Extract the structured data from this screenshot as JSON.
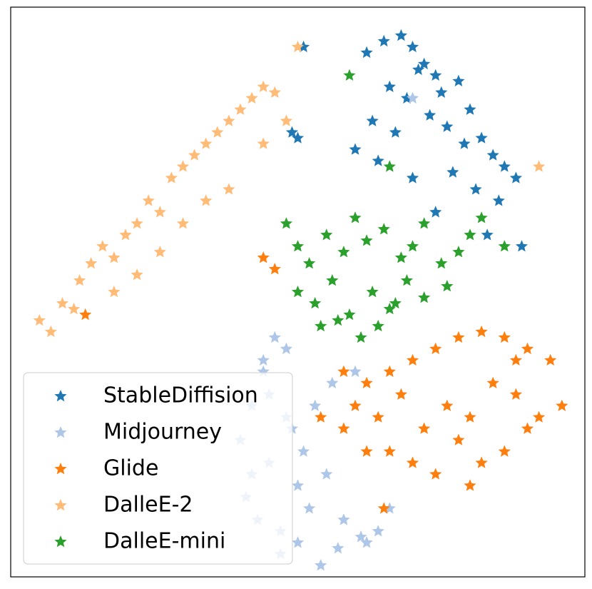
{
  "chart_data": {
    "type": "scatter",
    "xlim": [
      0,
      100
    ],
    "ylim": [
      0,
      100
    ],
    "legend": "lower left",
    "series": [
      {
        "name": "StableDiffision",
        "color": "#1f77b4",
        "x": [
          62,
          65,
          68,
          70,
          72,
          74,
          66,
          69,
          71,
          75,
          78,
          80,
          63,
          67,
          73,
          76,
          79,
          82,
          84,
          86,
          64,
          70,
          77,
          81,
          85,
          88,
          60,
          74,
          83,
          89,
          50,
          49,
          51
        ],
        "values": [
          92,
          94,
          95,
          93,
          90,
          88,
          86,
          84,
          89,
          85,
          87,
          82,
          80,
          78,
          81,
          79,
          76,
          77,
          74,
          72,
          73,
          70,
          71,
          68,
          66,
          70,
          75,
          64,
          60,
          58,
          77,
          78,
          93
        ]
      },
      {
        "name": "Midjourney",
        "color": "#aec7e8",
        "x": [
          46,
          48,
          44,
          42,
          40,
          45,
          50,
          52,
          47,
          43,
          41,
          49,
          53,
          56,
          60,
          45,
          48,
          51,
          55,
          58,
          62,
          64,
          47,
          50,
          54,
          57,
          61,
          42,
          44,
          66,
          70
        ],
        "values": [
          42,
          40,
          36,
          30,
          24,
          20,
          16,
          12,
          8,
          10,
          14,
          26,
          30,
          34,
          36,
          32,
          28,
          22,
          18,
          10,
          6,
          8,
          4,
          6,
          2,
          5,
          7,
          18,
          38,
          12,
          84
        ]
      },
      {
        "name": "Glide",
        "color": "#ff7f0e",
        "x": [
          62,
          66,
          70,
          74,
          78,
          82,
          86,
          90,
          94,
          96,
          60,
          64,
          68,
          72,
          76,
          80,
          84,
          88,
          92,
          66,
          70,
          74,
          78,
          82,
          86,
          88,
          90,
          58,
          62,
          80,
          44,
          46,
          13,
          65,
          54,
          58
        ],
        "values": [
          34,
          36,
          38,
          40,
          42,
          43,
          42,
          40,
          38,
          30,
          30,
          28,
          32,
          26,
          30,
          28,
          34,
          32,
          28,
          22,
          20,
          18,
          24,
          20,
          22,
          38,
          26,
          26,
          22,
          16,
          56,
          54,
          46,
          12,
          28,
          36
        ]
      },
      {
        "name": "DalleE-2",
        "color": "#ffbb78",
        "x": [
          5,
          7,
          9,
          11,
          12,
          14,
          16,
          18,
          20,
          22,
          24,
          26,
          28,
          30,
          32,
          34,
          36,
          38,
          40,
          42,
          44,
          46,
          48,
          18,
          22,
          26,
          30,
          34,
          38,
          44,
          92,
          50
        ],
        "values": [
          45,
          43,
          48,
          47,
          52,
          55,
          58,
          56,
          60,
          62,
          66,
          64,
          70,
          72,
          74,
          76,
          78,
          80,
          82,
          84,
          86,
          85,
          80,
          50,
          53,
          57,
          62,
          66,
          68,
          76,
          72,
          93
        ]
      },
      {
        "name": "DalleE-mini",
        "color": "#2ca02c",
        "x": [
          48,
          50,
          52,
          55,
          58,
          60,
          62,
          65,
          68,
          70,
          72,
          75,
          78,
          80,
          82,
          86,
          50,
          53,
          56,
          59,
          63,
          66,
          69,
          72,
          76,
          54,
          57,
          61,
          64,
          67,
          59,
          66
        ],
        "values": [
          62,
          58,
          55,
          60,
          57,
          63,
          59,
          61,
          56,
          58,
          62,
          55,
          57,
          60,
          63,
          58,
          50,
          48,
          52,
          46,
          50,
          47,
          52,
          49,
          51,
          44,
          45,
          42,
          44,
          48,
          88,
          72
        ]
      }
    ]
  }
}
